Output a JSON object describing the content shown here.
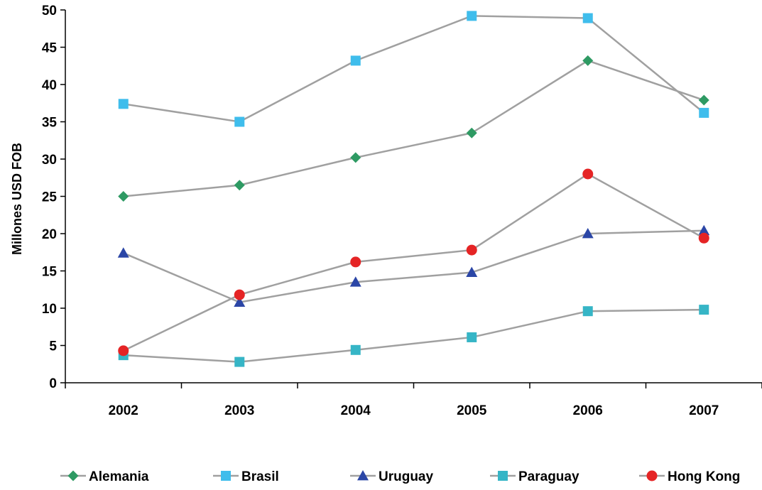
{
  "chart_data": {
    "type": "line",
    "title": "",
    "xlabel": "",
    "ylabel": "Millones USD FOB",
    "ylim": [
      0,
      50
    ],
    "yticks": [
      "0",
      "5",
      "10",
      "15",
      "20",
      "25",
      "30",
      "35",
      "40",
      "45",
      "50"
    ],
    "categories": [
      "2002",
      "2003",
      "2004",
      "2005",
      "2006",
      "2007"
    ],
    "grid": false,
    "legend_position": "bottom",
    "line_color": "#a0a0a0",
    "series": [
      {
        "name": "Alemania",
        "marker": "diamond",
        "color": "#2e9a63",
        "values": [
          25.0,
          26.5,
          30.2,
          33.5,
          43.2,
          37.9
        ]
      },
      {
        "name": "Brasil",
        "marker": "square",
        "color": "#3fbdec",
        "values": [
          37.4,
          35.0,
          43.2,
          49.2,
          48.9,
          36.2
        ]
      },
      {
        "name": "Uruguay",
        "marker": "triangle",
        "color": "#2b46a6",
        "values": [
          17.4,
          10.8,
          13.5,
          14.8,
          20.0,
          20.4
        ]
      },
      {
        "name": "Paraguay",
        "marker": "square",
        "color": "#36b5c6",
        "values": [
          3.7,
          2.8,
          4.4,
          6.1,
          9.6,
          9.8
        ]
      },
      {
        "name": "Hong Kong",
        "marker": "circle",
        "color": "#e52425",
        "values": [
          4.3,
          11.8,
          16.2,
          17.8,
          28.0,
          19.4
        ]
      }
    ]
  }
}
